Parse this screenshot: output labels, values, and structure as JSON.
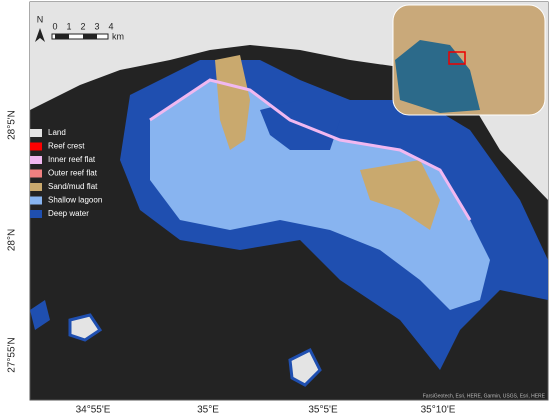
{
  "north_arrow": "N",
  "scale_bar": {
    "labels": [
      "0",
      "1",
      "2",
      "3",
      "4"
    ],
    "unit": "km"
  },
  "legend": [
    {
      "label": "Land",
      "color": "#e4e4e4"
    },
    {
      "label": "Reef crest",
      "color": "#ff0000"
    },
    {
      "label": "Inner reef flat",
      "color": "#f0b8f0"
    },
    {
      "label": "Outer reef flat",
      "color": "#f08080"
    },
    {
      "label": "Sand/mud flat",
      "color": "#c9a96e"
    },
    {
      "label": "Shallow lagoon",
      "color": "#88b4f0"
    },
    {
      "label": "Deep water",
      "color": "#1f4fb0"
    }
  ],
  "lat_labels": [
    "28°5'N",
    "28°N",
    "27°55'N"
  ],
  "lon_labels": [
    "34°55'E",
    "35°E",
    "35°5'E",
    "35°10'E"
  ],
  "attribution": "FarsiGeotech, Esri, HERE, Garmin, USGS, Esri, HERE"
}
